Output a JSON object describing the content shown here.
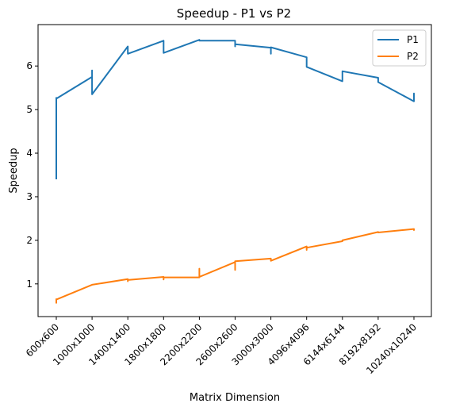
{
  "chart_data": {
    "type": "line",
    "title": "Speedup - P1 vs P2",
    "xlabel": "Matrix Dimension",
    "ylabel": "Speedup",
    "categories": [
      "600x600",
      "1000x1000",
      "1400x1400",
      "1800x1800",
      "2200x2200",
      "2600x2600",
      "3000x3000",
      "4096x4096",
      "6144x6144",
      "8192x8192",
      "10240x10240"
    ],
    "yticks": [
      1,
      2,
      3,
      4,
      5,
      6
    ],
    "ylim": [
      0.25,
      6.95
    ],
    "grid": false,
    "legend": {
      "placement": "top-right",
      "entries": [
        "P1",
        "P2"
      ]
    },
    "series": [
      {
        "name": "P1",
        "color": "#1f77b4",
        "points": [
          [
            0,
            3.4
          ],
          [
            0,
            5.27
          ],
          [
            0,
            5.25
          ],
          [
            1,
            5.75
          ],
          [
            1,
            5.9
          ],
          [
            1,
            5.35
          ],
          [
            2,
            6.45
          ],
          [
            2,
            6.28
          ],
          [
            3,
            6.58
          ],
          [
            3,
            6.3
          ],
          [
            4,
            6.6
          ],
          [
            4,
            6.58
          ],
          [
            5,
            6.58
          ],
          [
            5,
            6.45
          ],
          [
            5,
            6.5
          ],
          [
            6,
            6.42
          ],
          [
            6,
            6.28
          ],
          [
            6,
            6.43
          ],
          [
            7,
            6.2
          ],
          [
            7,
            5.98
          ],
          [
            8,
            5.65
          ],
          [
            8,
            5.88
          ],
          [
            9,
            5.73
          ],
          [
            9,
            5.68
          ],
          [
            9,
            5.63
          ],
          [
            10,
            5.19
          ],
          [
            10,
            5.37
          ],
          [
            10,
            5.3
          ]
        ]
      },
      {
        "name": "P2",
        "color": "#ff7f0e",
        "points": [
          [
            0,
            0.55
          ],
          [
            0,
            0.65
          ],
          [
            0,
            0.64
          ],
          [
            1,
            0.98
          ],
          [
            2,
            1.11
          ],
          [
            2,
            1.06
          ],
          [
            2,
            1.09
          ],
          [
            3,
            1.16
          ],
          [
            3,
            1.1
          ],
          [
            3,
            1.15
          ],
          [
            4,
            1.15
          ],
          [
            4,
            1.35
          ],
          [
            4,
            1.16
          ],
          [
            5,
            1.5
          ],
          [
            5,
            1.32
          ],
          [
            5,
            1.52
          ],
          [
            6,
            1.58
          ],
          [
            6,
            1.53
          ],
          [
            7,
            1.86
          ],
          [
            7,
            1.78
          ],
          [
            7,
            1.83
          ],
          [
            8,
            1.98
          ],
          [
            8,
            2.0
          ],
          [
            9,
            2.19
          ],
          [
            9,
            2.18
          ],
          [
            10,
            2.26
          ],
          [
            10,
            2.22
          ]
        ]
      }
    ]
  }
}
